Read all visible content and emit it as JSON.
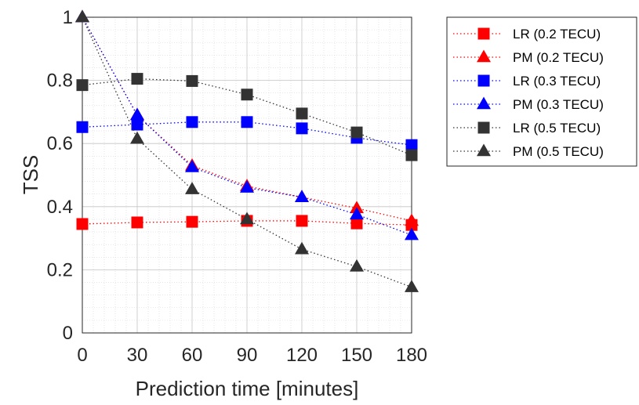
{
  "chart_data": {
    "type": "line",
    "title": "",
    "xlabel": "Prediction time [minutes]",
    "ylabel": "TSS",
    "x": [
      0,
      30,
      60,
      90,
      120,
      150,
      180
    ],
    "x_ticks": [
      "0",
      "30",
      "60",
      "90",
      "120",
      "150",
      "180"
    ],
    "y_ticks": [
      "0",
      "0.2",
      "0.4",
      "0.6",
      "0.8",
      "1"
    ],
    "xlim": [
      0,
      180
    ],
    "ylim": [
      0,
      1
    ],
    "grid": "on (major and minor, dotted)",
    "legend_position": "outside right, top",
    "series": [
      {
        "name": "LR (0.2 TECU)",
        "color": "#ff0000",
        "marker": "square",
        "values": [
          0.345,
          0.35,
          0.352,
          0.355,
          0.355,
          0.347,
          0.342
        ]
      },
      {
        "name": "PM (0.2 TECU)",
        "color": "#ff0000",
        "marker": "triangle",
        "values": [
          1.0,
          0.69,
          0.53,
          0.465,
          0.43,
          0.395,
          0.355
        ]
      },
      {
        "name": "LR (0.3 TECU)",
        "color": "#0000ff",
        "marker": "square",
        "values": [
          0.652,
          0.66,
          0.668,
          0.668,
          0.648,
          0.618,
          0.595
        ]
      },
      {
        "name": "PM (0.3 TECU)",
        "color": "#0000ff",
        "marker": "triangle",
        "values": [
          1.0,
          0.69,
          0.525,
          0.46,
          0.43,
          0.375,
          0.31
        ]
      },
      {
        "name": "LR (0.5 TECU)",
        "color": "#333333",
        "marker": "square",
        "values": [
          0.785,
          0.805,
          0.798,
          0.755,
          0.695,
          0.635,
          0.563
        ]
      },
      {
        "name": "PM (0.5 TECU)",
        "color": "#333333",
        "marker": "triangle",
        "values": [
          1.0,
          0.615,
          0.455,
          0.36,
          0.265,
          0.21,
          0.145
        ]
      }
    ]
  }
}
